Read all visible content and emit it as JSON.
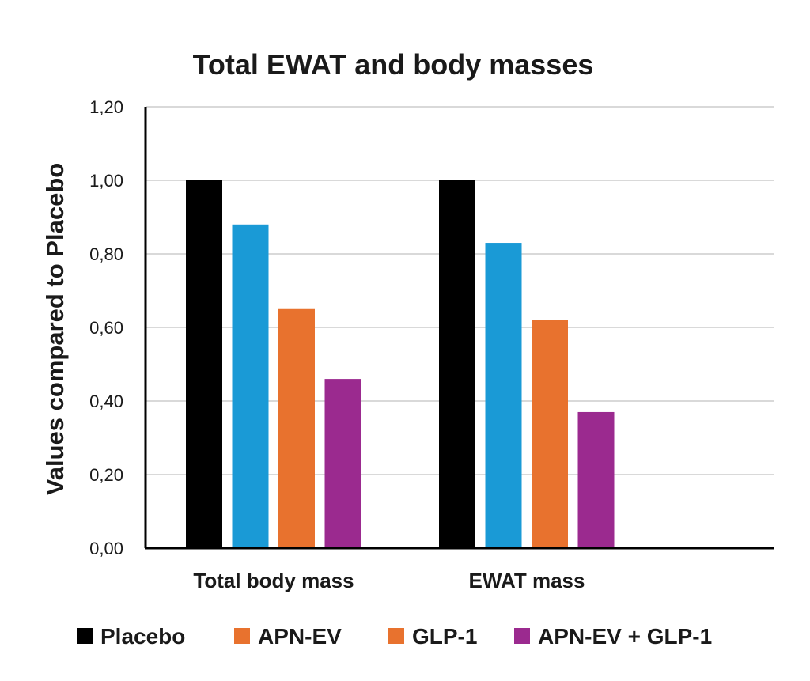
{
  "chart_data": {
    "type": "bar",
    "title": "Total EWAT and body masses",
    "ylabel": "Values compared to Placebo",
    "xlabel": "",
    "ylim": [
      0,
      1.2
    ],
    "yticks": [
      0,
      0.2,
      0.4,
      0.6,
      0.8,
      1.0,
      1.2
    ],
    "ytick_labels": [
      "0,00",
      "0,20",
      "0,40",
      "0,60",
      "0,80",
      "1,00",
      "1,20"
    ],
    "categories": [
      "Total body mass",
      "EWAT mass"
    ],
    "grid": true,
    "legend_position": "bottom",
    "series": [
      {
        "name": "Placebo",
        "values": [
          1.0,
          1.0
        ],
        "color": "#000000",
        "legend_color": "#000000"
      },
      {
        "name": "APN-EV",
        "values": [
          0.88,
          0.83
        ],
        "color": "#1a9ad6",
        "legend_color": "#e8722e"
      },
      {
        "name": "GLP-1",
        "values": [
          0.65,
          0.62
        ],
        "color": "#e8722e",
        "legend_color": "#e8722e"
      },
      {
        "name": "APN-EV + GLP-1",
        "values": [
          0.46,
          0.37
        ],
        "color": "#9b2a8f",
        "legend_color": "#9b2a8f"
      }
    ]
  }
}
